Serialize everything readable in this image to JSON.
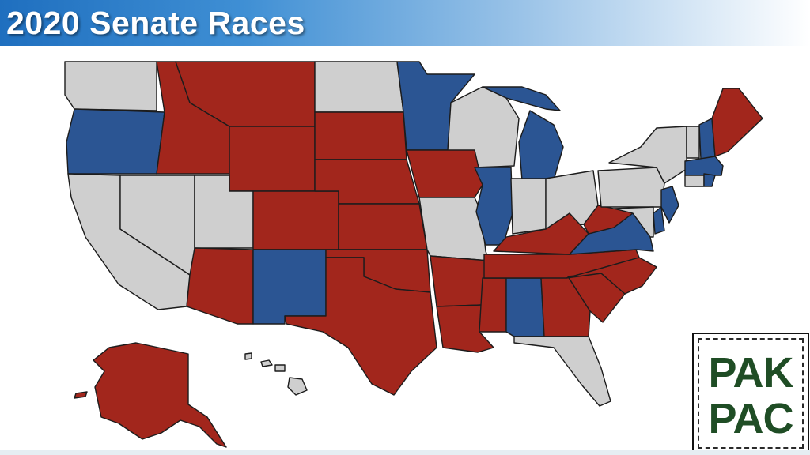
{
  "title": "2020 Senate Races",
  "logo": {
    "line1": "PAK",
    "line2": "PAC"
  },
  "colors": {
    "republican": "#a2261c",
    "democrat": "#2b5593",
    "no_race": "#cfcfcf"
  }
}
